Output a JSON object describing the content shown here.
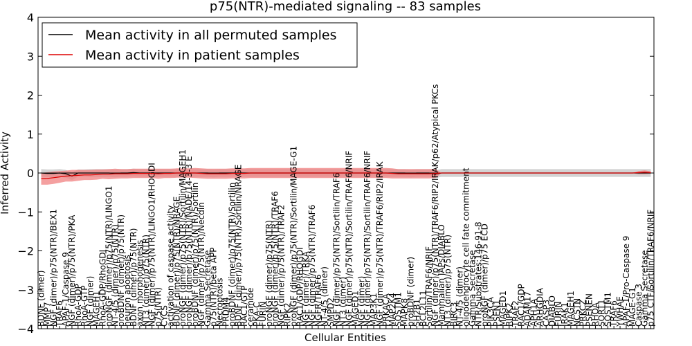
{
  "chart_data": {
    "type": "line",
    "title": "p75(NTR)-mediated signaling -- 83 samples",
    "xlabel": "Cellular Entities",
    "ylabel": "Inferred Activity",
    "ylim": [
      -4,
      4
    ],
    "yticks": [
      -4,
      -3,
      -2,
      -1,
      0,
      1,
      2,
      3,
      4
    ],
    "grid": false,
    "legend_position": "top-left",
    "categories": [
      "BDNF (dimer)",
      "MMP7",
      "NGF (dimer)/p75(NTR)/BEX1",
      "TRAF6",
      "APAF-1/Caspase 9",
      "NGF (dimer)/p75(NTR)/PKA",
      "RhoA-GDP",
      "RhoA-GTP",
      "NGF (dimer)",
      "MAGEH1",
      "RhoA-GDP/RhoGDI",
      "proNGF (dimer)/p75(NTR)/LINGO1",
      "NT-4/5 (dimer)/p75(NTR)",
      "proBDNF (dimer)/p75(NTR)",
      "neuron apoptosis",
      "BDNF (dimer)/p75(NTR)",
      "axon morphogenesis",
      "NT3 (dimer)/p75(NTR)",
      "NGF (dimer)/p75(NTR)/LINGO1/RHOGDI",
      "p75(NTR)",
      "CYCS",
      "activation of caspase activity",
      "BDNF (dimer)/p75(NTR)/NRAGE",
      "proNGF (dimer)/p75(NTR)/Sortilin/MAGEH1",
      "proNGF (dimer)/p75(NTR)/NADE/14-3-3 E",
      "proBDNF (dimer)/p75(NTR)/Sortilin",
      "NGF (dimer)/p75(NTR)/Necdin",
      "Gamma Secretase",
      "p75(NTR)/beta APP",
      "Necroptosis",
      "PRDM4",
      "proBDNF (dimer)/p75(NTR)/Sortilin",
      "BDNF (dimer)/p75(NTR)/Sortilin/NRAGE",
      "RAC1/GTP",
      "ceramide",
      "PKA-C",
      "FURIN",
      "proNGF (dimer)/p75(NTR)",
      "proNGF (dimer)/p75(NTR)/TRAF6",
      "NGF (dimer)/p75(NTR)/TRAF2",
      "RIPK2",
      "proNGF (dimer)/p75(NTR)/Sortilin/MAGE-G1",
      "RAC1/GDP/RHOGDI",
      "NGF (dimer)/TRKA",
      "NGF (dimer)/p75(NTR)/TRAF6",
      "NGFR/TRAF6",
      "NT-4/5 (dimer)",
      "SMPD2",
      "NGF (dimer)/p75(NTR)/Sortilin/TRAF6",
      "NT3 (dimer)",
      "NGF (dimer)/p75(NTR)/Sortilin/TRAF6/NRIF",
      "MAGED1",
      "NGF (dimer)",
      "NGF (dimer)/p75(NTR)/Sortilin/TRAF6/NRIF",
      "MAP3K1",
      "NGF (dimer)/p75(NTR)/TRAF6/RIP2/IRAK",
      "PRKACA",
      "MAP2K4",
      "SQSTM1",
      "MAPK8",
      "proBDNF (dimer)",
      "SH2B1",
      "BCL2L11",
      "Sortilin/TRAF6/NRIF",
      "NGF (dimer)/p75(NTR)/TRAF6/RIP2/IRAK/p62/Atypical PKCs",
      "Mammalian IAPs/DIABLO",
      "NT3 (dimer)/p75(NTR)",
      "BIRC3",
      "NT-4/5 (dimer)",
      "oligodendrocyte cell fate commitment",
      "Gamma Secretase",
      "NTR/Substrates:146-91-8",
      "proNGF (dimer)/p75 ECD",
      "PIK3CA",
      "PSEN1",
      "MAGED1",
      "RIPK2",
      "TRAF2",
      "RAC1/GDP",
      "ADAM17",
      "APH1A",
      "ARHGDIA",
      "CASP3",
      "DIABLO",
      "FURIN",
      "IRAK1",
      "MAGEH1",
      "NCSTN",
      "PRKCZ",
      "PSENEN",
      "RHOA",
      "SORT1",
      "SQSTM1",
      "TRAF6",
      "YWHAE",
      "APAF-1/Pro-Caspase 9",
      "MAGE-G1",
      "Caspase 3",
      "Gamma Secretase",
      "p75 CTF/Sortilin/TRAF6/NRIF"
    ],
    "series": [
      {
        "name": "Mean activity in all permuted samples",
        "color": "#000000",
        "band_color": "#c8c8c8",
        "values": [
          0.0,
          -0.01,
          -0.01,
          0.0,
          -0.02,
          -0.08,
          0.0,
          0.0,
          0.0,
          0.0,
          0.0,
          0.0,
          -0.01,
          0.0,
          0.0,
          0.01,
          0.0,
          0.0,
          0.0,
          0.0,
          0.0,
          0.0,
          0.0,
          0.0,
          0.0,
          0.0,
          0.0,
          0.0,
          -0.01,
          0.0,
          0.0,
          0.0,
          0.0,
          0.0,
          0.0,
          0.0,
          0.0,
          0.0,
          0.0,
          0.0,
          0.0,
          0.0,
          0.0,
          0.0,
          0.0,
          0.0,
          0.0,
          0.0,
          0.0,
          0.0,
          0.0,
          0.0,
          0.0,
          0.0,
          0.0,
          0.0,
          0.0,
          0.0,
          0.0,
          0.0,
          -0.01,
          0.0,
          0.0,
          0.0,
          -0.03,
          0.0,
          0.0,
          0.0,
          0.0,
          0.0,
          0.0,
          0.0,
          0.0,
          0.0,
          0.0,
          0.0,
          0.0,
          0.0,
          0.0,
          0.0,
          0.0,
          0.0,
          0.0,
          0.0,
          0.0,
          0.0,
          0.0,
          0.0,
          0.0,
          0.0,
          0.0,
          0.0,
          0.0,
          0.0,
          0.0,
          0.0,
          0.0,
          0.0,
          0.0,
          0.0
        ],
        "band_halfwidth": [
          0.1,
          0.1,
          0.1,
          0.1,
          0.1,
          0.1,
          0.09,
          0.09,
          0.1,
          0.1,
          0.1,
          0.1,
          0.1,
          0.1,
          0.1,
          0.1,
          0.1,
          0.1,
          0.1,
          0.1,
          0.1,
          0.1,
          0.1,
          0.1,
          0.1,
          0.1,
          0.1,
          0.1,
          0.1,
          0.1,
          0.1,
          0.1,
          0.1,
          0.1,
          0.1,
          0.1,
          0.1,
          0.1,
          0.1,
          0.1,
          0.1,
          0.1,
          0.1,
          0.1,
          0.1,
          0.1,
          0.1,
          0.1,
          0.1,
          0.1,
          0.1,
          0.1,
          0.1,
          0.1,
          0.1,
          0.1,
          0.1,
          0.1,
          0.1,
          0.1,
          0.1,
          0.1,
          0.1,
          0.1,
          0.1,
          0.1,
          0.1,
          0.1,
          0.1,
          0.1,
          0.1,
          0.1,
          0.1,
          0.1,
          0.1,
          0.1,
          0.1,
          0.1,
          0.1,
          0.1,
          0.1,
          0.1,
          0.1,
          0.1,
          0.1,
          0.1,
          0.1,
          0.1,
          0.1,
          0.1,
          0.1,
          0.1,
          0.1,
          0.1,
          0.1,
          0.1,
          0.1,
          0.1,
          0.1,
          0.1
        ]
      },
      {
        "name": "Mean activity in patient samples",
        "color": "#dd0000",
        "band_color": "#f08080",
        "values": [
          -0.15,
          -0.14,
          -0.12,
          -0.1,
          -0.08,
          -0.07,
          -0.06,
          -0.05,
          -0.05,
          -0.04,
          -0.03,
          -0.03,
          -0.02,
          -0.02,
          -0.02,
          -0.01,
          -0.01,
          -0.01,
          -0.01,
          -0.02,
          -0.01,
          -0.01,
          0.0,
          0.0,
          0.0,
          0.0,
          -0.01,
          -0.02,
          -0.02,
          -0.02,
          -0.02,
          -0.01,
          -0.01,
          -0.01,
          0.0,
          0.0,
          0.0,
          0.0,
          0.0,
          0.0,
          0.0,
          0.0,
          0.0,
          0.0,
          0.0,
          0.0,
          0.0,
          0.0,
          0.0,
          0.0,
          0.0,
          0.0,
          0.0,
          0.0,
          0.0,
          0.0,
          0.0,
          -0.01,
          -0.02,
          -0.02,
          -0.02,
          -0.02,
          -0.02,
          -0.02,
          -0.01,
          0.0,
          0.0,
          0.0,
          0.0,
          0.0,
          0.0,
          0.0,
          0.0,
          0.0,
          0.0,
          0.0,
          0.0,
          0.0,
          0.0,
          0.0,
          0.0,
          0.0,
          0.0,
          0.0,
          0.0,
          0.0,
          0.0,
          0.0,
          0.0,
          0.0,
          0.0,
          0.0,
          0.0,
          0.0,
          0.0,
          0.0,
          0.0,
          0.01,
          0.02,
          0.01
        ],
        "band_halfwidth": [
          0.15,
          0.16,
          0.16,
          0.15,
          0.14,
          0.15,
          0.14,
          0.13,
          0.13,
          0.13,
          0.12,
          0.13,
          0.13,
          0.12,
          0.12,
          0.12,
          0.12,
          0.12,
          0.12,
          0.13,
          0.12,
          0.12,
          0.12,
          0.12,
          0.12,
          0.13,
          0.13,
          0.13,
          0.13,
          0.13,
          0.13,
          0.13,
          0.13,
          0.13,
          0.13,
          0.13,
          0.13,
          0.13,
          0.13,
          0.13,
          0.13,
          0.13,
          0.13,
          0.13,
          0.13,
          0.13,
          0.13,
          0.13,
          0.13,
          0.13,
          0.13,
          0.13,
          0.13,
          0.13,
          0.13,
          0.13,
          0.13,
          0.13,
          0.12,
          0.12,
          0.12,
          0.12,
          0.12,
          0.12,
          0.12,
          0.0,
          0.0,
          0.0,
          0.0,
          0.0,
          0.0,
          0.0,
          0.0,
          0.0,
          0.0,
          0.0,
          0.0,
          0.0,
          0.0,
          0.0,
          0.0,
          0.0,
          0.0,
          0.0,
          0.0,
          0.0,
          0.0,
          0.0,
          0.0,
          0.0,
          0.0,
          0.0,
          0.0,
          0.0,
          0.0,
          0.0,
          0.0,
          0.04,
          0.05,
          0.03
        ]
      }
    ]
  }
}
